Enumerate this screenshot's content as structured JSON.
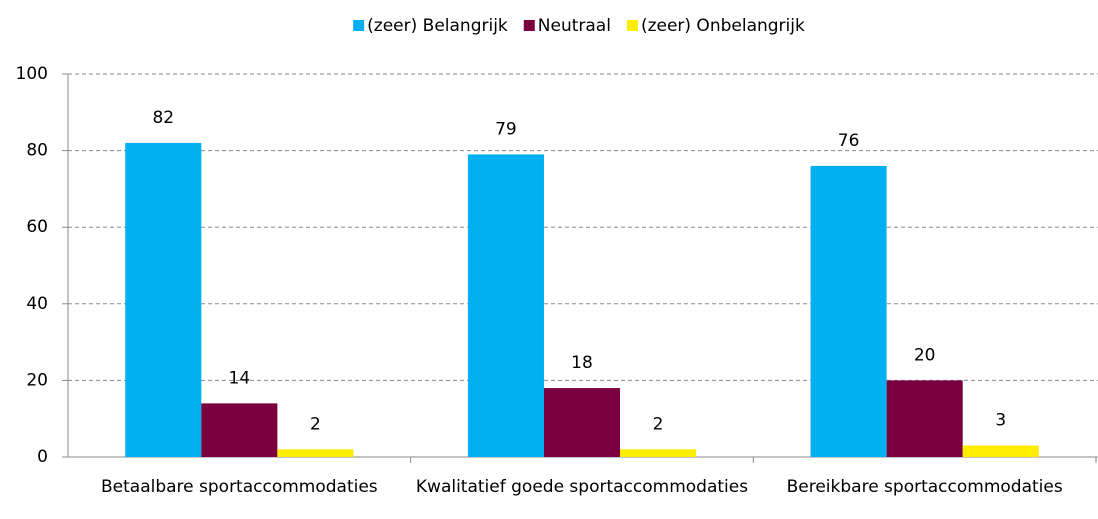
{
  "chart_data": {
    "type": "bar",
    "categories": [
      "Betaalbare sportaccommodaties",
      "Kwalitatief goede sportaccommodaties",
      "Bereikbare sportaccommodaties"
    ],
    "series": [
      {
        "name": "(zeer) Belangrijk",
        "color": "#00b0f0",
        "values": [
          82,
          79,
          76
        ]
      },
      {
        "name": "Neutraal",
        "color": "#7b003f",
        "values": [
          14,
          18,
          20
        ]
      },
      {
        "name": "(zeer) Onbelangrijk",
        "color": "#ffed00",
        "values": [
          2,
          2,
          3
        ]
      }
    ],
    "ylim": [
      0,
      100
    ],
    "yticks": [
      0,
      20,
      40,
      60,
      80,
      100
    ],
    "grid": true,
    "legend": "top"
  }
}
